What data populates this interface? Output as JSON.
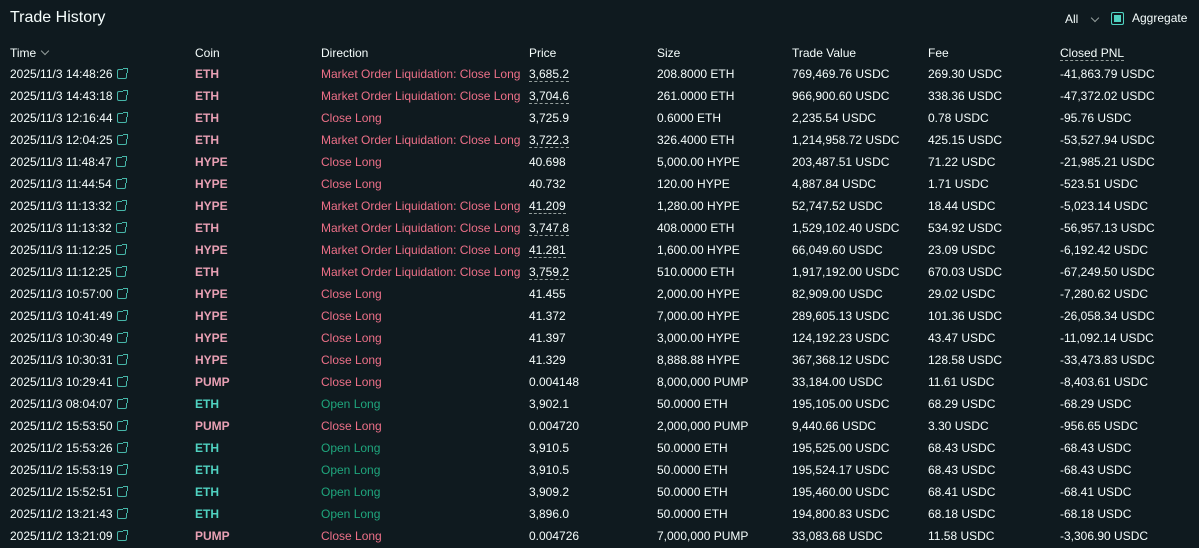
{
  "header": {
    "title": "Trade History",
    "filter_value": "All",
    "aggregate_label": "Aggregate",
    "aggregate_checked": true
  },
  "colors": {
    "background": "#0f1a1f",
    "sell": "#ed7088",
    "sell_coin": "#e8a0b4",
    "buy": "#1fa67d",
    "buy_coin": "#50d2c1",
    "text": "#f6fefd"
  },
  "columns": [
    "Time",
    "Coin",
    "Direction",
    "Price",
    "Size",
    "Trade Value",
    "Fee",
    "Closed PNL"
  ],
  "rows": [
    {
      "time": "2025/11/3 14:48:26",
      "coin": "ETH",
      "direction": "Market Order Liquidation: Close Long",
      "side": "sell",
      "price": "3,685.2",
      "liq": true,
      "size": "208.8000 ETH",
      "value": "769,469.76 USDC",
      "fee": "269.30 USDC",
      "pnl": "-41,863.79 USDC"
    },
    {
      "time": "2025/11/3 14:43:18",
      "coin": "ETH",
      "direction": "Market Order Liquidation: Close Long",
      "side": "sell",
      "price": "3,704.6",
      "liq": true,
      "size": "261.0000 ETH",
      "value": "966,900.60 USDC",
      "fee": "338.36 USDC",
      "pnl": "-47,372.02 USDC"
    },
    {
      "time": "2025/11/3 12:16:44",
      "coin": "ETH",
      "direction": "Close Long",
      "side": "sell",
      "price": "3,725.9",
      "liq": false,
      "size": "0.6000 ETH",
      "value": "2,235.54 USDC",
      "fee": "0.78 USDC",
      "pnl": "-95.76 USDC"
    },
    {
      "time": "2025/11/3 12:04:25",
      "coin": "ETH",
      "direction": "Market Order Liquidation: Close Long",
      "side": "sell",
      "price": "3,722.3",
      "liq": true,
      "size": "326.4000 ETH",
      "value": "1,214,958.72 USDC",
      "fee": "425.15 USDC",
      "pnl": "-53,527.94 USDC"
    },
    {
      "time": "2025/11/3 11:48:47",
      "coin": "HYPE",
      "direction": "Close Long",
      "side": "sell",
      "price": "40.698",
      "liq": false,
      "size": "5,000.00 HYPE",
      "value": "203,487.51 USDC",
      "fee": "71.22 USDC",
      "pnl": "-21,985.21 USDC"
    },
    {
      "time": "2025/11/3 11:44:54",
      "coin": "HYPE",
      "direction": "Close Long",
      "side": "sell",
      "price": "40.732",
      "liq": false,
      "size": "120.00 HYPE",
      "value": "4,887.84 USDC",
      "fee": "1.71 USDC",
      "pnl": "-523.51 USDC"
    },
    {
      "time": "2025/11/3 11:13:32",
      "coin": "HYPE",
      "direction": "Market Order Liquidation: Close Long",
      "side": "sell",
      "price": "41.209",
      "liq": true,
      "size": "1,280.00 HYPE",
      "value": "52,747.52 USDC",
      "fee": "18.44 USDC",
      "pnl": "-5,023.14 USDC"
    },
    {
      "time": "2025/11/3 11:13:32",
      "coin": "ETH",
      "direction": "Market Order Liquidation: Close Long",
      "side": "sell",
      "price": "3,747.8",
      "liq": true,
      "size": "408.0000 ETH",
      "value": "1,529,102.40 USDC",
      "fee": "534.92 USDC",
      "pnl": "-56,957.13 USDC"
    },
    {
      "time": "2025/11/3 11:12:25",
      "coin": "HYPE",
      "direction": "Market Order Liquidation: Close Long",
      "side": "sell",
      "price": "41.281",
      "liq": true,
      "size": "1,600.00 HYPE",
      "value": "66,049.60 USDC",
      "fee": "23.09 USDC",
      "pnl": "-6,192.42 USDC"
    },
    {
      "time": "2025/11/3 11:12:25",
      "coin": "ETH",
      "direction": "Market Order Liquidation: Close Long",
      "side": "sell",
      "price": "3,759.2",
      "liq": true,
      "size": "510.0000 ETH",
      "value": "1,917,192.00 USDC",
      "fee": "670.03 USDC",
      "pnl": "-67,249.50 USDC"
    },
    {
      "time": "2025/11/3 10:57:00",
      "coin": "HYPE",
      "direction": "Close Long",
      "side": "sell",
      "price": "41.455",
      "liq": false,
      "size": "2,000.00 HYPE",
      "value": "82,909.00 USDC",
      "fee": "29.02 USDC",
      "pnl": "-7,280.62 USDC"
    },
    {
      "time": "2025/11/3 10:41:49",
      "coin": "HYPE",
      "direction": "Close Long",
      "side": "sell",
      "price": "41.372",
      "liq": false,
      "size": "7,000.00 HYPE",
      "value": "289,605.13 USDC",
      "fee": "101.36 USDC",
      "pnl": "-26,058.34 USDC"
    },
    {
      "time": "2025/11/3 10:30:49",
      "coin": "HYPE",
      "direction": "Close Long",
      "side": "sell",
      "price": "41.397",
      "liq": false,
      "size": "3,000.00 HYPE",
      "value": "124,192.23 USDC",
      "fee": "43.47 USDC",
      "pnl": "-11,092.14 USDC"
    },
    {
      "time": "2025/11/3 10:30:31",
      "coin": "HYPE",
      "direction": "Close Long",
      "side": "sell",
      "price": "41.329",
      "liq": false,
      "size": "8,888.88 HYPE",
      "value": "367,368.12 USDC",
      "fee": "128.58 USDC",
      "pnl": "-33,473.83 USDC"
    },
    {
      "time": "2025/11/3 10:29:41",
      "coin": "PUMP",
      "direction": "Close Long",
      "side": "sell",
      "price": "0.004148",
      "liq": false,
      "size": "8,000,000 PUMP",
      "value": "33,184.00 USDC",
      "fee": "11.61 USDC",
      "pnl": "-8,403.61 USDC"
    },
    {
      "time": "2025/11/3 08:04:07",
      "coin": "ETH",
      "direction": "Open Long",
      "side": "buy",
      "price": "3,902.1",
      "liq": false,
      "size": "50.0000 ETH",
      "value": "195,105.00 USDC",
      "fee": "68.29 USDC",
      "pnl": "-68.29 USDC"
    },
    {
      "time": "2025/11/2 15:53:50",
      "coin": "PUMP",
      "direction": "Close Long",
      "side": "sell",
      "price": "0.004720",
      "liq": false,
      "size": "2,000,000 PUMP",
      "value": "9,440.66 USDC",
      "fee": "3.30 USDC",
      "pnl": "-956.65 USDC"
    },
    {
      "time": "2025/11/2 15:53:26",
      "coin": "ETH",
      "direction": "Open Long",
      "side": "buy",
      "price": "3,910.5",
      "liq": false,
      "size": "50.0000 ETH",
      "value": "195,525.00 USDC",
      "fee": "68.43 USDC",
      "pnl": "-68.43 USDC"
    },
    {
      "time": "2025/11/2 15:53:19",
      "coin": "ETH",
      "direction": "Open Long",
      "side": "buy",
      "price": "3,910.5",
      "liq": false,
      "size": "50.0000 ETH",
      "value": "195,524.17 USDC",
      "fee": "68.43 USDC",
      "pnl": "-68.43 USDC"
    },
    {
      "time": "2025/11/2 15:52:51",
      "coin": "ETH",
      "direction": "Open Long",
      "side": "buy",
      "price": "3,909.2",
      "liq": false,
      "size": "50.0000 ETH",
      "value": "195,460.00 USDC",
      "fee": "68.41 USDC",
      "pnl": "-68.41 USDC"
    },
    {
      "time": "2025/11/2 13:21:43",
      "coin": "ETH",
      "direction": "Open Long",
      "side": "buy",
      "price": "3,896.0",
      "liq": false,
      "size": "50.0000 ETH",
      "value": "194,800.83 USDC",
      "fee": "68.18 USDC",
      "pnl": "-68.18 USDC"
    },
    {
      "time": "2025/11/2 13:21:09",
      "coin": "PUMP",
      "direction": "Close Long",
      "side": "sell",
      "price": "0.004726",
      "liq": false,
      "size": "7,000,000 PUMP",
      "value": "33,083.68 USDC",
      "fee": "11.58 USDC",
      "pnl": "-3,306.90 USDC"
    }
  ]
}
